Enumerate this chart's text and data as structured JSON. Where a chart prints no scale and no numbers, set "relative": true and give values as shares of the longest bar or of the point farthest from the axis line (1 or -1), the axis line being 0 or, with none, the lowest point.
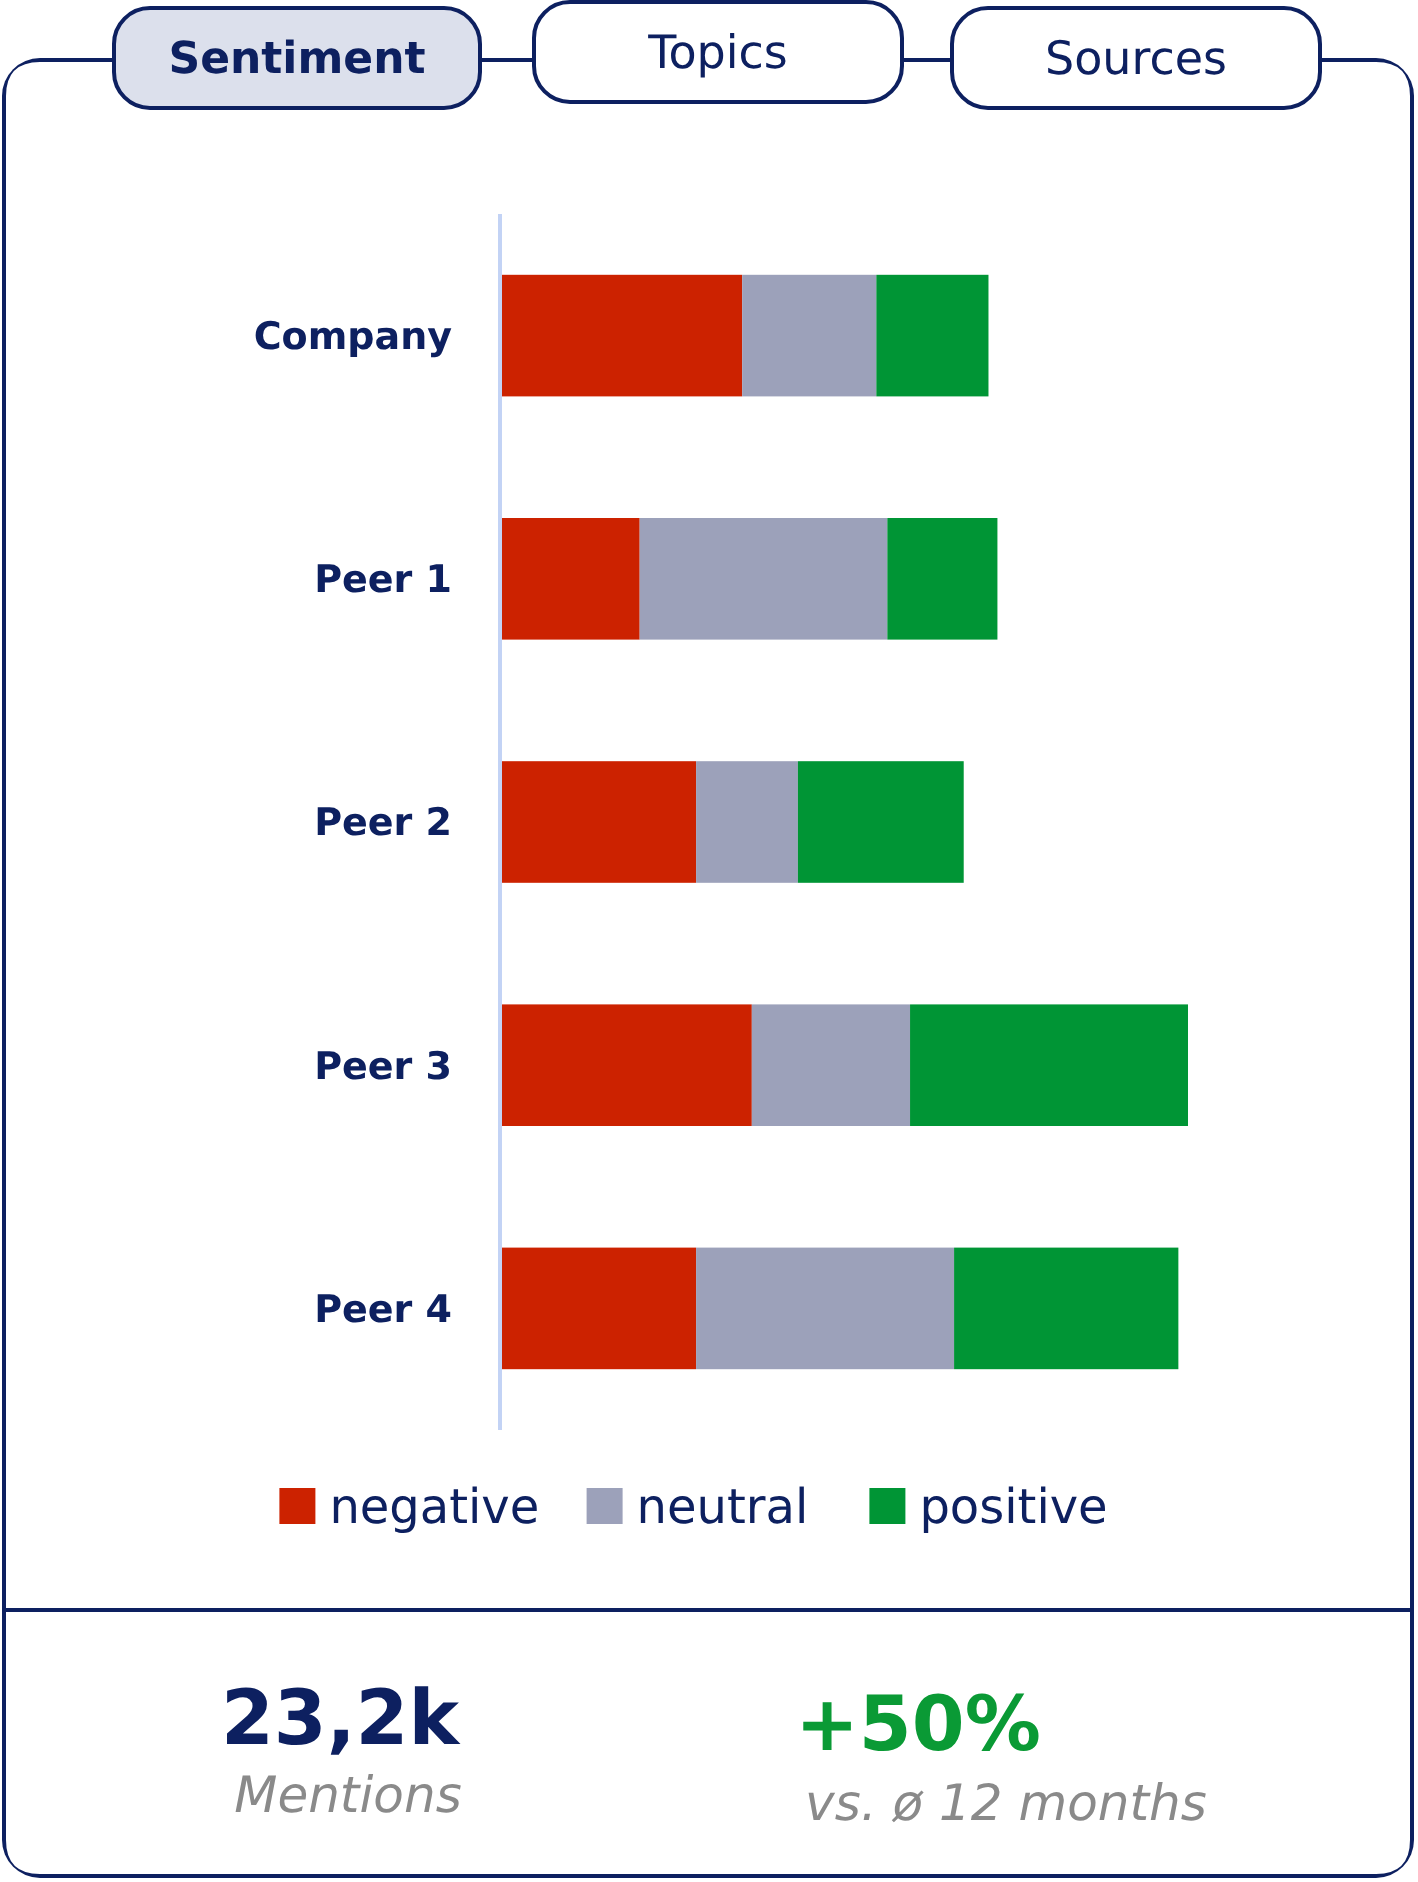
{
  "chart_data": {
    "type": "bar",
    "orientation": "horizontal",
    "stacked": true,
    "relative": true,
    "categories": [
      "Company",
      "Peer 1",
      "Peer 2",
      "Peer 3",
      "Peer 4"
    ],
    "series": [
      {
        "name": "negative",
        "color": "#cc2200",
        "values": [
          0.352,
          0.203,
          0.285,
          0.366,
          0.285
        ]
      },
      {
        "name": "neutral",
        "color": "#9ca1ba",
        "values": [
          0.195,
          0.36,
          0.148,
          0.23,
          0.375
        ]
      },
      {
        "name": "positive",
        "color": "#009535",
        "values": [
          0.163,
          0.16,
          0.241,
          0.404,
          0.326
        ]
      }
    ],
    "legend": "bottom",
    "annotations": [
      "Sentiment",
      "Topics",
      "Sources",
      "23,2k",
      "Mentions",
      "+50%",
      "vs. ø 12 months"
    ]
  }
}
